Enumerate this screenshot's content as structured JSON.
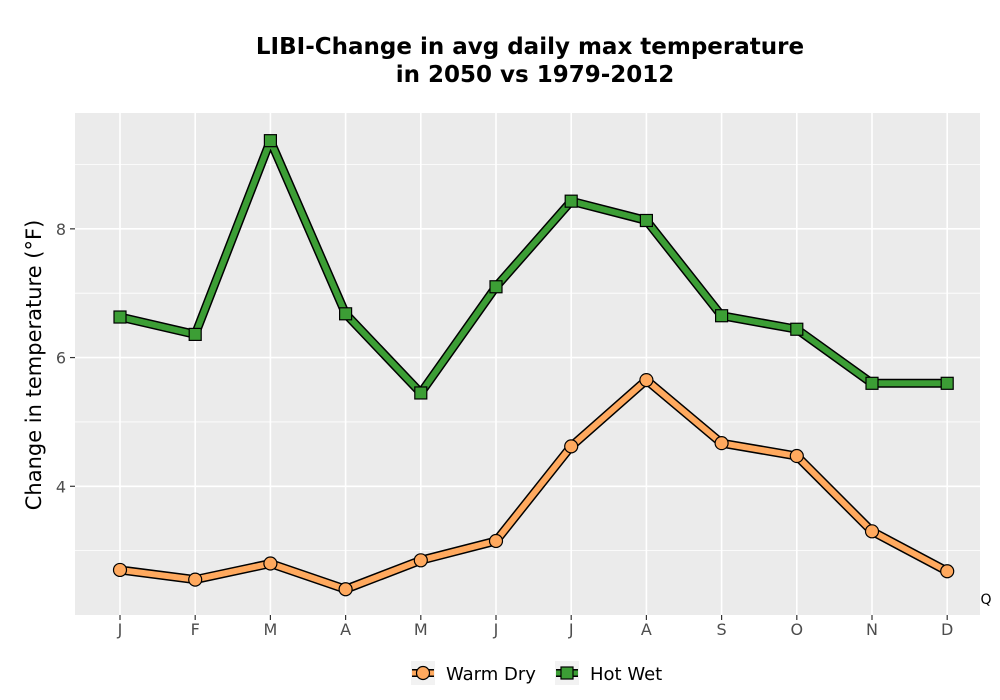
{
  "chart_data": {
    "type": "line",
    "title_line1": "LIBI-Change in avg daily max temperature",
    "title_line2": "in 2050 vs 1979-2012",
    "xlabel": "",
    "ylabel": "Change in temperature (°F)",
    "categories": [
      "J",
      "F",
      "M",
      "A",
      "M",
      "J",
      "J",
      "A",
      "S",
      "O",
      "N",
      "D"
    ],
    "ylim": [
      2.0,
      9.8
    ],
    "yticks": [
      4,
      6,
      8
    ],
    "grid": true,
    "legend_position": "bottom",
    "series": [
      {
        "name": "Warm Dry",
        "marker": "circle",
        "color": "#ffa95e",
        "values": [
          2.7,
          2.55,
          2.8,
          2.4,
          2.85,
          3.15,
          4.62,
          5.65,
          4.67,
          4.47,
          3.3,
          2.68
        ]
      },
      {
        "name": "Hot Wet",
        "marker": "square",
        "color": "#3c9e35",
        "values": [
          6.63,
          6.36,
          9.37,
          6.68,
          5.45,
          7.1,
          8.43,
          8.13,
          6.65,
          6.44,
          5.6,
          5.6
        ]
      }
    ],
    "corner_note": "Q"
  }
}
